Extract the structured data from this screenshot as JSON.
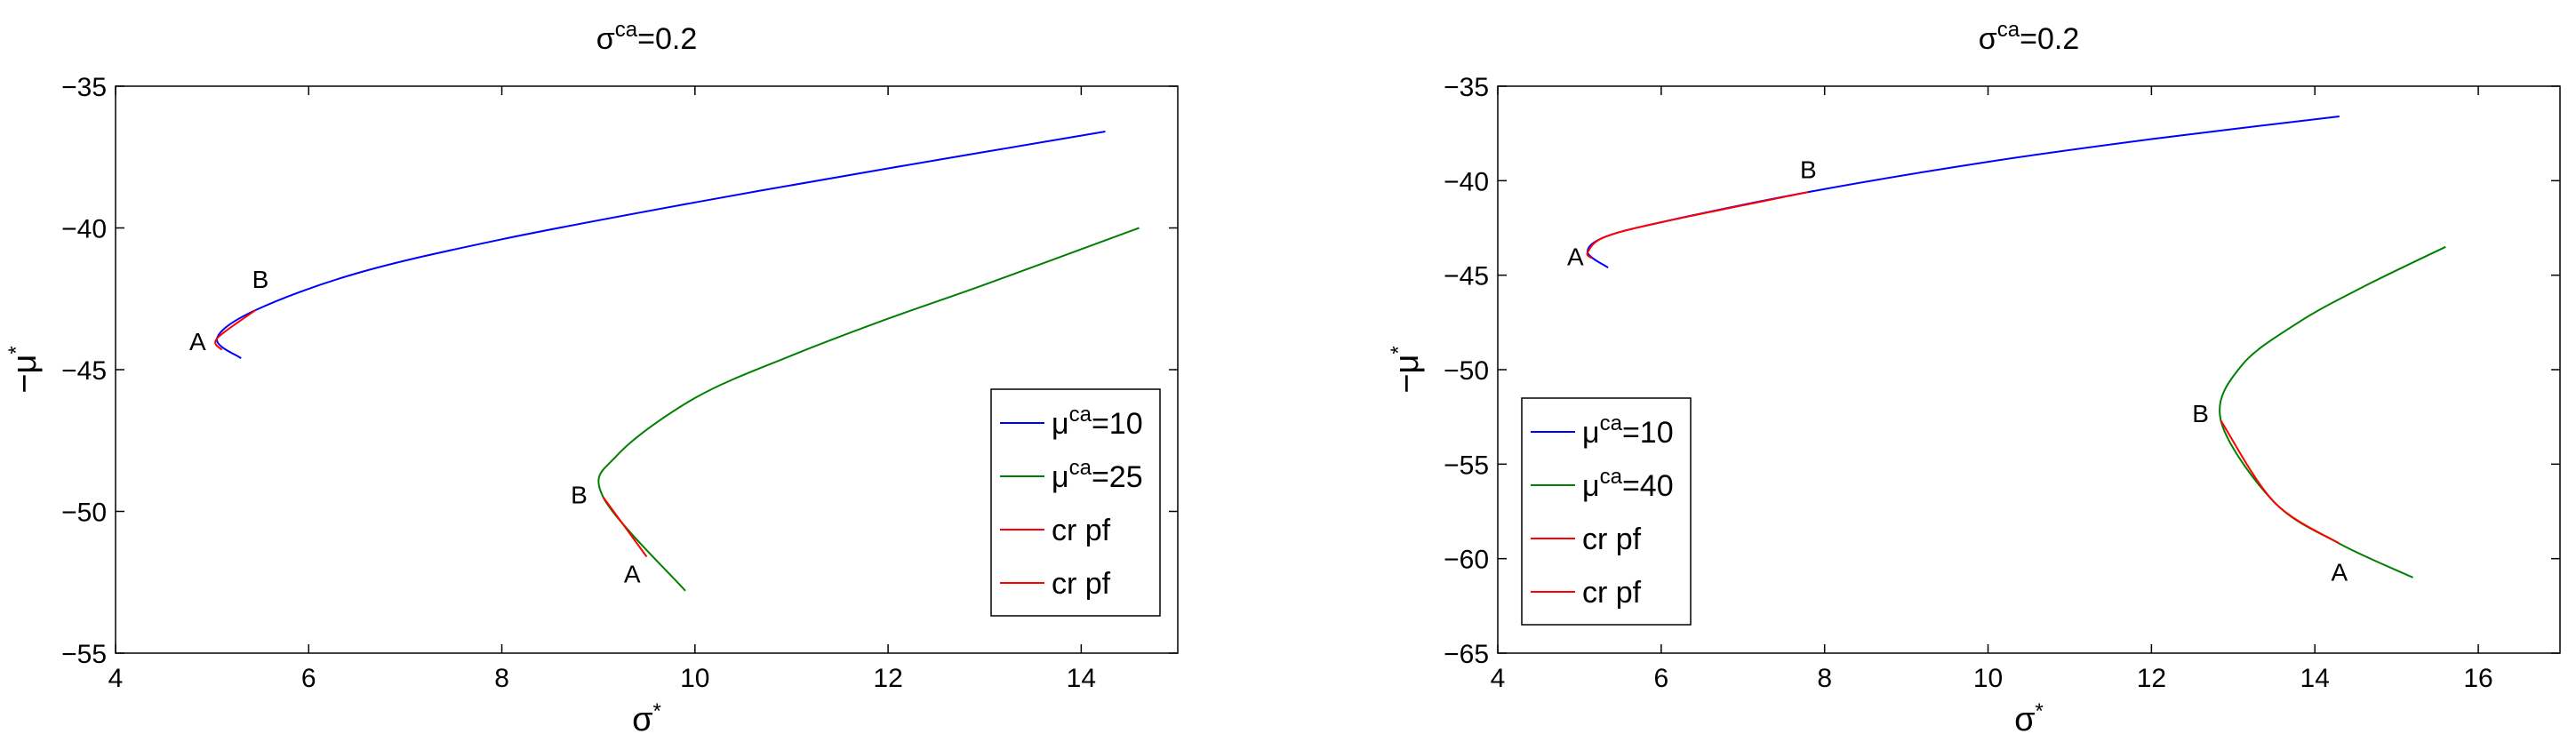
{
  "chart_data": [
    {
      "type": "line",
      "title": {
        "base": "σ",
        "sup": "ca",
        "rest": "=0.2"
      },
      "xlabel": {
        "base": "σ",
        "sup": "*"
      },
      "ylabel": {
        "base": "−μ",
        "sup": "*"
      },
      "xlim": [
        4,
        15
      ],
      "ylim": [
        -55,
        -35
      ],
      "xticks": [
        4,
        6,
        8,
        10,
        12,
        14
      ],
      "yticks": [
        -55,
        -50,
        -45,
        -40,
        -35
      ],
      "xtick_labels": [
        "4",
        "6",
        "8",
        "10",
        "12",
        "14"
      ],
      "ytick_labels": [
        "−55",
        "−50",
        "−45",
        "−40",
        "−35"
      ],
      "series": [
        {
          "name": "μca=10",
          "color": "#0000ff",
          "x": [
            5.3,
            5.05,
            5.45,
            6.5,
            8.0,
            10.0,
            12.0,
            14.25
          ],
          "y": [
            -44.6,
            -43.9,
            -42.9,
            -41.6,
            -40.4,
            -39.1,
            -37.9,
            -36.6
          ]
        },
        {
          "name": "μca=25",
          "color": "#008000",
          "x": [
            9.9,
            9.05,
            9.2,
            10.0,
            11.0,
            12.0,
            13.0,
            14.6
          ],
          "y": [
            -52.8,
            -49.5,
            -48.0,
            -46.0,
            -44.5,
            -43.2,
            -42.0,
            -40.0
          ]
        },
        {
          "name": "cr pf",
          "color": "#ff0000",
          "x": [
            5.1,
            5.05,
            5.45
          ],
          "y": [
            -44.3,
            -43.9,
            -42.9
          ]
        },
        {
          "name": "cr pf",
          "color": "#ff0000",
          "x": [
            9.5,
            9.05
          ],
          "y": [
            -51.6,
            -49.5
          ]
        }
      ],
      "annotations": [
        {
          "text": "A",
          "x": 4.85,
          "y": -44.0
        },
        {
          "text": "B",
          "x": 5.5,
          "y": -41.8
        },
        {
          "text": "B",
          "x": 8.8,
          "y": -49.4
        },
        {
          "text": "A",
          "x": 9.35,
          "y": -52.2
        }
      ],
      "legend": {
        "position": "lower-right",
        "entries": [
          {
            "base": "μ",
            "sup": "ca",
            "rest": "=10",
            "color": "#0000ff"
          },
          {
            "base": "μ",
            "sup": "ca",
            "rest": "=25",
            "color": "#008000"
          },
          {
            "base": "cr pf",
            "sup": "",
            "rest": "",
            "color": "#ff0000"
          },
          {
            "base": "cr pf",
            "sup": "",
            "rest": "",
            "color": "#ff0000"
          }
        ]
      }
    },
    {
      "type": "line",
      "title": {
        "base": "σ",
        "sup": "ca",
        "rest": "=0.2"
      },
      "xlabel": {
        "base": "σ",
        "sup": "*"
      },
      "ylabel": {
        "base": "−μ",
        "sup": "*"
      },
      "xlim": [
        4,
        17
      ],
      "ylim": [
        -65,
        -35
      ],
      "xticks": [
        4,
        6,
        8,
        10,
        12,
        14,
        16
      ],
      "yticks": [
        -65,
        -60,
        -55,
        -50,
        -45,
        -40,
        -35
      ],
      "xtick_labels": [
        "4",
        "6",
        "8",
        "10",
        "12",
        "14",
        "16"
      ],
      "ytick_labels": [
        "−65",
        "−60",
        "−55",
        "−50",
        "−45",
        "−40",
        "−35"
      ],
      "series": [
        {
          "name": "μca=10",
          "color": "#0000ff",
          "x": [
            5.35,
            5.1,
            5.3,
            6.0,
            7.8,
            10.0,
            12.0,
            14.3
          ],
          "y": [
            -44.6,
            -43.8,
            -43.0,
            -42.2,
            -40.6,
            -39.0,
            -37.8,
            -36.6
          ]
        },
        {
          "name": "μca=40",
          "color": "#008000",
          "x": [
            15.2,
            14.3,
            13.5,
            12.85,
            13.1,
            13.8,
            14.6,
            15.6
          ],
          "y": [
            -61.0,
            -59.2,
            -57.0,
            -52.7,
            -49.8,
            -47.5,
            -45.6,
            -43.5
          ]
        },
        {
          "name": "cr pf",
          "color": "#ff0000",
          "x": [
            5.15,
            5.1,
            5.3,
            6.0,
            7.8
          ],
          "y": [
            -44.1,
            -43.8,
            -43.0,
            -42.2,
            -40.6
          ]
        },
        {
          "name": "cr pf",
          "color": "#ff0000",
          "x": [
            14.3,
            13.5,
            12.85
          ],
          "y": [
            -59.2,
            -57.0,
            -52.7
          ]
        }
      ],
      "annotations": [
        {
          "text": "A",
          "x": 4.95,
          "y": -44.0
        },
        {
          "text": "B",
          "x": 7.8,
          "y": -39.4
        },
        {
          "text": "B",
          "x": 12.6,
          "y": -52.3
        },
        {
          "text": "A",
          "x": 14.3,
          "y": -60.7
        }
      ],
      "legend": {
        "position": "lower-left",
        "entries": [
          {
            "base": "μ",
            "sup": "ca",
            "rest": "=10",
            "color": "#0000ff"
          },
          {
            "base": "μ",
            "sup": "ca",
            "rest": "=40",
            "color": "#008000"
          },
          {
            "base": "cr pf",
            "sup": "",
            "rest": "",
            "color": "#ff0000"
          },
          {
            "base": "cr pf",
            "sup": "",
            "rest": "",
            "color": "#ff0000"
          }
        ]
      }
    }
  ]
}
